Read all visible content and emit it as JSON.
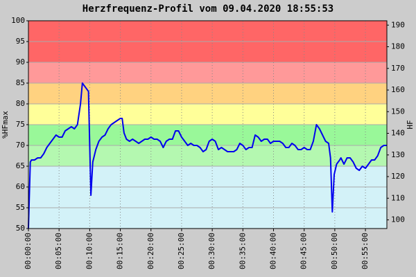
{
  "chart_data": {
    "type": "line",
    "title": "Herzfrequenz-Profil vom 09.04.2020 18:55:53",
    "ylabel": "%HFmax",
    "y2label": "HF",
    "x": [
      0,
      0.3,
      0.5,
      1,
      1.5,
      2,
      2.5,
      3,
      3.5,
      4,
      4.5,
      5,
      5.5,
      6,
      6.5,
      7,
      7.5,
      8,
      8.5,
      8.8,
      9.3,
      9.8,
      10,
      10.2,
      10.5,
      11,
      11.5,
      12,
      12.5,
      13,
      13.5,
      14,
      14.5,
      15,
      15.3,
      15.6,
      16,
      16.5,
      17,
      17.5,
      18,
      18.5,
      19,
      19.5,
      20,
      20.5,
      21,
      21.5,
      22,
      22.5,
      23,
      23.5,
      24,
      24.5,
      25,
      25.5,
      26,
      26.5,
      27,
      27.5,
      28,
      28.5,
      29,
      29.5,
      30,
      30.5,
      31,
      31.5,
      32,
      32.5,
      33,
      33.5,
      34,
      34.5,
      35,
      35.5,
      36,
      36.5,
      37,
      37.5,
      38,
      38.5,
      39,
      39.5,
      40,
      40.5,
      41,
      41.5,
      42,
      42.5,
      43,
      43.5,
      44,
      44.5,
      45,
      45.5,
      46,
      46.5,
      47,
      47.5,
      48,
      48.5,
      49,
      49.3,
      49.6,
      49.9,
      50.3,
      50.8,
      51,
      51.5,
      52,
      52.5,
      53,
      53.5,
      54,
      54.5,
      55,
      55.5,
      56,
      56.5,
      57,
      57.5,
      58,
      58.5
    ],
    "series": [
      {
        "name": "%HFmax",
        "color": "#0000ee",
        "values": [
          50,
          66,
          66.5,
          66.5,
          67,
          67,
          68,
          69.5,
          70.5,
          71.5,
          72.5,
          72,
          72,
          73.5,
          74,
          74.5,
          74,
          75,
          80,
          85,
          84,
          83,
          70,
          58,
          66,
          69,
          71,
          72,
          72.5,
          74,
          75,
          75.5,
          76,
          76.5,
          76.5,
          73,
          71.5,
          71,
          71.5,
          71,
          70.5,
          71,
          71.5,
          71.5,
          72,
          71.5,
          71.5,
          71,
          69.5,
          71,
          71.5,
          71.5,
          73.5,
          73.5,
          72,
          71,
          70,
          70.5,
          70,
          70,
          69.5,
          68.5,
          69,
          71,
          71.5,
          71,
          69,
          69.5,
          69,
          68.5,
          68.5,
          68.5,
          69,
          70.5,
          70,
          69,
          69.5,
          69.5,
          72.5,
          72,
          71,
          71.5,
          71.5,
          70.5,
          71,
          71,
          71,
          70.5,
          69.5,
          69.5,
          70.5,
          70,
          69,
          69,
          69.5,
          69,
          69,
          71,
          75,
          74,
          72.5,
          71,
          70.5,
          67,
          54,
          63,
          65.5,
          66.5,
          67,
          65.5,
          67,
          67,
          66,
          64.5,
          64,
          65,
          64.5,
          65.5,
          66.5,
          66.5,
          67.5,
          69.5,
          70,
          70
        ]
      }
    ],
    "zones": [
      {
        "from": 50,
        "to": 65,
        "color": "#d3f2f8"
      },
      {
        "from": 65,
        "to": 70,
        "color": "#b4f8b0"
      },
      {
        "from": 70,
        "to": 75,
        "color": "#99f899"
      },
      {
        "from": 75,
        "to": 80,
        "color": "#ffff99"
      },
      {
        "from": 80,
        "to": 85,
        "color": "#ffd280"
      },
      {
        "from": 85,
        "to": 90,
        "color": "#ff9999"
      },
      {
        "from": 90,
        "to": 100,
        "color": "#ff6666"
      }
    ],
    "xlim": [
      0,
      58.5
    ],
    "xticks": [
      {
        "value": 0,
        "label": "00:00:00"
      },
      {
        "value": 5,
        "label": "00:05:00"
      },
      {
        "value": 10,
        "label": "00:10:00"
      },
      {
        "value": 15,
        "label": "00:15:00"
      },
      {
        "value": 20,
        "label": "00:20:00"
      },
      {
        "value": 25,
        "label": "00:25:00"
      },
      {
        "value": 30,
        "label": "00:30:00"
      },
      {
        "value": 35,
        "label": "00:35:00"
      },
      {
        "value": 40,
        "label": "00:40:00"
      },
      {
        "value": 45,
        "label": "00:45:00"
      },
      {
        "value": 50,
        "label": "00:50:00"
      },
      {
        "value": 55,
        "label": "00:55:00"
      }
    ],
    "ylim": [
      50,
      100
    ],
    "yticks": [
      50,
      55,
      60,
      65,
      70,
      75,
      80,
      85,
      90,
      95,
      100
    ],
    "y2lim": [
      96,
      192
    ],
    "y2ticks": [
      100,
      110,
      120,
      130,
      140,
      150,
      160,
      170,
      180,
      190
    ],
    "grid": true
  }
}
